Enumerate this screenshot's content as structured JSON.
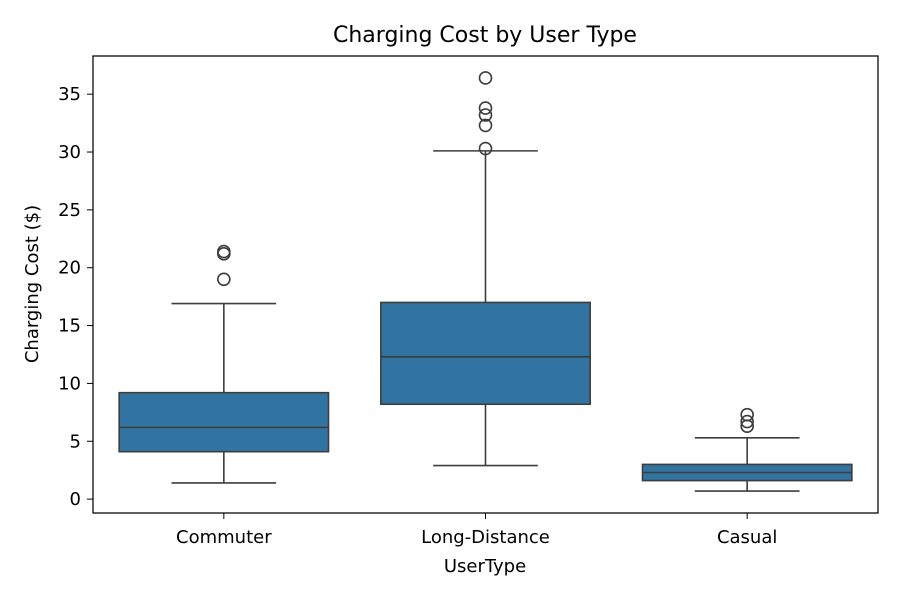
{
  "chart_data": {
    "type": "box",
    "title": "Charging Cost by User Type",
    "xlabel": "UserType",
    "ylabel": "Charging Cost ($)",
    "ylim": [
      -1.2,
      38.3
    ],
    "yticks": [
      0,
      5,
      10,
      15,
      20,
      25,
      30,
      35
    ],
    "categories": [
      "Commuter",
      "Long-Distance",
      "Casual"
    ],
    "box_color": "#3274a1",
    "edge_color": "#3d3d3d",
    "boxes": [
      {
        "category": "Commuter",
        "whisker_low": 1.4,
        "q1": 4.1,
        "median": 6.2,
        "q3": 9.2,
        "whisker_high": 16.9,
        "outliers": [
          19.0,
          21.2,
          21.4
        ]
      },
      {
        "category": "Long-Distance",
        "whisker_low": 2.9,
        "q1": 8.2,
        "median": 12.3,
        "q3": 17.0,
        "whisker_high": 30.1,
        "outliers": [
          30.3,
          32.3,
          33.2,
          33.8,
          36.4
        ]
      },
      {
        "category": "Casual",
        "whisker_low": 0.7,
        "q1": 1.6,
        "median": 2.3,
        "q3": 3.0,
        "whisker_high": 5.3,
        "outliers": [
          6.3,
          6.7,
          7.3
        ]
      }
    ]
  }
}
